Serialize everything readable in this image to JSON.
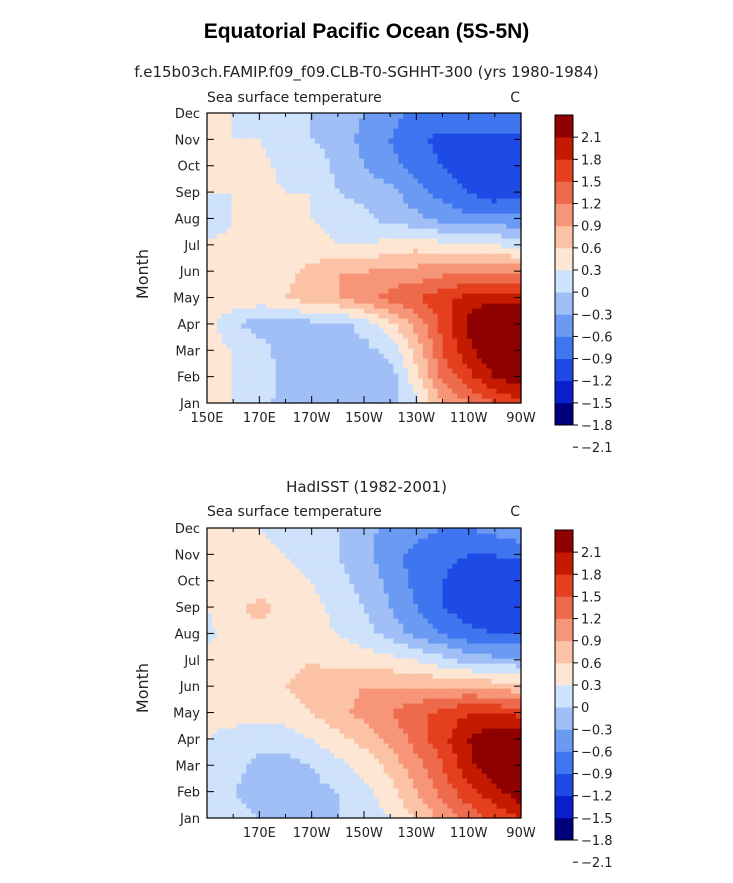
{
  "title": "Equatorial Pacific Ocean (5S-5N)",
  "run_title": "f.e15b03ch.FAMIP.f09_f09.CLB-T0-SGHHT-300 (yrs 1980-1984)",
  "lower_title": "HadISST (1982-2001)",
  "colors": {
    "levels": [
      "#00007d",
      "#0a1fcc",
      "#1e4ae6",
      "#3f75ef",
      "#6b9af3",
      "#a0bff6",
      "#cfe2fb",
      "#fde6d4",
      "#fbc2a6",
      "#f69577",
      "#ee6a4c",
      "#e4401f",
      "#c41b00",
      "#8f0000"
    ]
  },
  "chart_data": [
    {
      "type": "heatmap",
      "panel_label": "Sea surface temperature",
      "units": "C",
      "ylabel": "Month",
      "x_ticks": [
        "150E",
        "170E",
        "170W",
        "150W",
        "130W",
        "110W",
        "90W"
      ],
      "x_range": [
        150,
        270
      ],
      "y_ticks": [
        "Jan",
        "Feb",
        "Mar",
        "Apr",
        "May",
        "Jun",
        "Jul",
        "Aug",
        "Sep",
        "Oct",
        "Nov",
        "Dec"
      ],
      "levels": [
        -2.4,
        -2.1,
        -1.8,
        -1.5,
        -1.2,
        -0.9,
        -0.6,
        -0.3,
        0,
        0.3,
        0.6,
        0.9,
        1.2,
        1.5,
        1.8,
        2.1,
        2.4
      ],
      "colorbar_labels": [
        "2.1",
        "1.8",
        "1.5",
        "1.2",
        "0.9",
        "0.6",
        "0.3",
        "0",
        "−0.3",
        "−0.6",
        "−0.9",
        "−1.2",
        "−1.5",
        "−1.8",
        "−2.1"
      ],
      "x": [
        150,
        160,
        170,
        180,
        190,
        200,
        210,
        220,
        230,
        240,
        250,
        260,
        270
      ],
      "z": [
        [
          0.1,
          0.0,
          -0.2,
          -0.4,
          -0.5,
          -0.5,
          -0.5,
          -0.4,
          -0.1,
          0.6,
          0.9,
          1.2,
          1.4
        ],
        [
          0.1,
          0.0,
          -0.1,
          -0.4,
          -0.5,
          -0.5,
          -0.6,
          -0.5,
          0.2,
          1.0,
          1.4,
          1.8,
          2.0
        ],
        [
          0.1,
          0.0,
          -0.1,
          -0.5,
          -0.5,
          -0.4,
          -0.4,
          -0.2,
          0.4,
          1.2,
          1.7,
          2.1,
          2.4
        ],
        [
          0.1,
          -0.2,
          -0.5,
          -0.5,
          -0.4,
          -0.4,
          -0.2,
          0.2,
          0.7,
          1.3,
          1.9,
          2.3,
          2.3
        ],
        [
          0.2,
          0.2,
          0.2,
          0.3,
          0.5,
          0.6,
          0.8,
          1.0,
          1.2,
          1.4,
          1.6,
          1.7,
          1.7
        ],
        [
          0.1,
          0.1,
          0.1,
          0.2,
          0.4,
          0.6,
          0.6,
          0.7,
          0.7,
          0.8,
          0.9,
          0.9,
          0.8
        ],
        [
          0.1,
          0.1,
          0.1,
          0.1,
          0.1,
          0.0,
          0.0,
          0.1,
          0.2,
          0.1,
          0.0,
          0.0,
          -0.1
        ],
        [
          -0.3,
          0.0,
          0.1,
          0.0,
          0.0,
          -0.1,
          -0.2,
          -0.4,
          -0.5,
          -0.7,
          -0.8,
          -0.8,
          -0.8
        ],
        [
          0.0,
          0.0,
          0.1,
          0.0,
          0.0,
          -0.3,
          -0.4,
          -0.5,
          -0.8,
          -1.0,
          -1.2,
          -1.4,
          -1.3
        ],
        [
          0.0,
          0.0,
          0.1,
          -0.1,
          -0.1,
          -0.4,
          -0.6,
          -0.8,
          -1.0,
          -1.2,
          -1.4,
          -1.5,
          -1.5
        ],
        [
          0.0,
          0.0,
          0.0,
          -0.2,
          -0.3,
          -0.4,
          -0.7,
          -0.9,
          -1.1,
          -1.3,
          -1.3,
          -1.3,
          -1.3
        ],
        [
          0.1,
          0.0,
          -0.1,
          -0.2,
          -0.3,
          -0.4,
          -0.6,
          -0.8,
          -1.0,
          -1.0,
          -1.0,
          -1.0,
          -0.9
        ]
      ]
    },
    {
      "type": "heatmap",
      "panel_label": "Sea surface temperature",
      "units": "C",
      "ylabel": "Month",
      "x_ticks": [
        "170E",
        "170W",
        "150W",
        "130W",
        "110W",
        "90W"
      ],
      "x_range": [
        150,
        270
      ],
      "y_ticks": [
        "Jan",
        "Feb",
        "Mar",
        "Apr",
        "May",
        "Jun",
        "Jul",
        "Aug",
        "Sep",
        "Oct",
        "Nov",
        "Dec"
      ],
      "levels": [
        -2.4,
        -2.1,
        -1.8,
        -1.5,
        -1.2,
        -0.9,
        -0.6,
        -0.3,
        0,
        0.3,
        0.6,
        0.9,
        1.2,
        1.5,
        1.8,
        2.1,
        2.4
      ],
      "colorbar_labels": [
        "2.1",
        "1.8",
        "1.5",
        "1.2",
        "0.9",
        "0.6",
        "0.3",
        "0",
        "−0.3",
        "−0.6",
        "−0.9",
        "−1.2",
        "−1.5",
        "−1.8",
        "−2.1"
      ],
      "x": [
        150,
        160,
        170,
        180,
        190,
        200,
        210,
        220,
        230,
        240,
        250,
        260,
        270
      ],
      "z": [
        [
          -0.1,
          -0.2,
          -0.3,
          -0.4,
          -0.4,
          -0.3,
          -0.2,
          0.0,
          0.3,
          0.7,
          1.0,
          1.3,
          1.5
        ],
        [
          -0.1,
          -0.3,
          -0.4,
          -0.4,
          -0.4,
          -0.3,
          -0.1,
          0.2,
          0.6,
          1.0,
          1.4,
          1.7,
          2.0
        ],
        [
          -0.1,
          -0.2,
          -0.4,
          -0.4,
          -0.3,
          -0.1,
          0.1,
          0.4,
          0.8,
          1.2,
          1.7,
          2.1,
          2.3
        ],
        [
          0.0,
          -0.1,
          -0.2,
          -0.2,
          0.0,
          0.2,
          0.4,
          0.7,
          1.0,
          1.4,
          1.8,
          2.1,
          2.2
        ],
        [
          0.1,
          0.1,
          0.1,
          0.2,
          0.3,
          0.5,
          0.7,
          0.9,
          1.1,
          1.3,
          1.5,
          1.5,
          1.4
        ],
        [
          0.1,
          0.1,
          0.2,
          0.3,
          0.4,
          0.5,
          0.6,
          0.6,
          0.6,
          0.6,
          0.6,
          0.5,
          0.4
        ],
        [
          0.1,
          0.2,
          0.2,
          0.2,
          0.3,
          0.2,
          0.2,
          0.1,
          0.0,
          -0.2,
          -0.4,
          -0.5,
          -0.5
        ],
        [
          -0.1,
          0.2,
          0.2,
          0.2,
          0.1,
          0.0,
          -0.2,
          -0.4,
          -0.7,
          -0.9,
          -1.1,
          -1.2,
          -1.2
        ],
        [
          0.0,
          0.2,
          0.4,
          0.2,
          0.1,
          -0.1,
          -0.3,
          -0.6,
          -0.9,
          -1.2,
          -1.4,
          -1.5,
          -1.5
        ],
        [
          0.0,
          0.1,
          0.1,
          0.1,
          0.0,
          -0.2,
          -0.4,
          -0.7,
          -1.0,
          -1.2,
          -1.4,
          -1.5,
          -1.5
        ],
        [
          0.0,
          0.1,
          0.1,
          0.0,
          -0.1,
          -0.3,
          -0.5,
          -0.8,
          -1.0,
          -1.1,
          -1.2,
          -1.2,
          -1.1
        ],
        [
          0.0,
          0.1,
          0.0,
          -0.1,
          -0.2,
          -0.3,
          -0.5,
          -0.7,
          -0.8,
          -0.9,
          -0.9,
          -0.8,
          -0.7
        ]
      ]
    }
  ]
}
